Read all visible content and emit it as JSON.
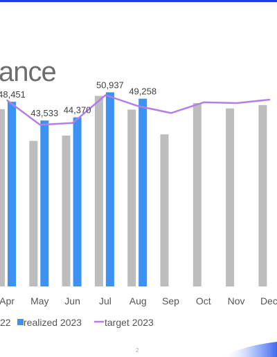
{
  "slide": {
    "title": "ance",
    "page_number": "2"
  },
  "colors": {
    "top_bar": "#1f3fe0",
    "prior_year_bar": "#bdbdbd",
    "realized_bar": "#3b92f3",
    "target_line": "#b57ee6",
    "swoosh": "#3b6cf2"
  },
  "chart_data": {
    "type": "bar",
    "categories": [
      "Apr",
      "May",
      "Jun",
      "Jul",
      "Aug",
      "Sep",
      "Oct",
      "Nov",
      "Dec"
    ],
    "series": [
      {
        "name": "22",
        "kind": "bar",
        "values": [
          46500,
          38200,
          39600,
          50000,
          46400,
          39900,
          48100,
          46700,
          47600
        ]
      },
      {
        "name": "realized 2023",
        "kind": "bar",
        "values": [
          48451,
          43533,
          44370,
          50937,
          49258,
          null,
          null,
          null,
          null
        ],
        "labels": [
          "48,451",
          "43,533",
          "44,370",
          "50,937",
          "49,258",
          "",
          "",
          "",
          ""
        ]
      },
      {
        "name": "target 2023",
        "kind": "line",
        "values": [
          48800,
          42400,
          42900,
          50200,
          47300,
          45500,
          48300,
          48100,
          49000
        ]
      }
    ],
    "ylim": [
      0,
      57000
    ],
    "grid": false,
    "legend_position": "bottom",
    "xlabel": "",
    "ylabel": ""
  }
}
